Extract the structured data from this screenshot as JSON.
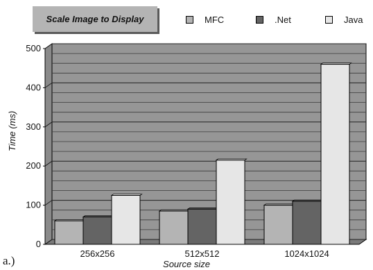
{
  "chart_data": {
    "type": "bar",
    "title": "Scale Image to Display",
    "xlabel": "Source size",
    "ylabel": "Time (ms)",
    "categories": [
      "256x256",
      "512x512",
      "1024x1024"
    ],
    "series": [
      {
        "name": "MFC",
        "values": [
          60,
          85,
          100
        ],
        "color": "#b4b4b4"
      },
      {
        "name": ".Net",
        "values": [
          70,
          90,
          110
        ],
        "color": "#646464"
      },
      {
        "name": "Java",
        "values": [
          125,
          215,
          460
        ],
        "color": "#e6e6e6"
      }
    ],
    "ylim": [
      0,
      500
    ],
    "yticks": [
      "0",
      "100",
      "200",
      "300",
      "400",
      "500"
    ],
    "grid": true,
    "plot_background": "#969696",
    "legend": "top"
  },
  "panel_label": "a.)"
}
